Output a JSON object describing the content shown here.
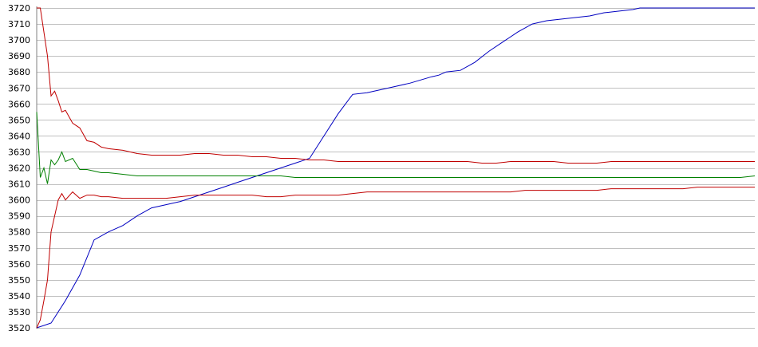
{
  "chart_data": {
    "type": "line",
    "title": "",
    "xlabel": "",
    "ylabel": "",
    "ylim": [
      3520,
      3720
    ],
    "yticks": [
      3520,
      3530,
      3540,
      3550,
      3560,
      3570,
      3580,
      3590,
      3600,
      3610,
      3620,
      3630,
      3640,
      3650,
      3660,
      3670,
      3680,
      3690,
      3700,
      3710,
      3720
    ],
    "xlim": [
      0,
      100
    ],
    "grid": true,
    "legend": "none",
    "series": [
      {
        "color": "#0000c0",
        "x": [
          0,
          2,
          4,
          6,
          8,
          10,
          12,
          14,
          16,
          18,
          20,
          22,
          24,
          26,
          28,
          30,
          32,
          34,
          36,
          38,
          40,
          42,
          44,
          46,
          48,
          50,
          52,
          53.5,
          55,
          56,
          57,
          59,
          61,
          63,
          65,
          67,
          69,
          71,
          73,
          75,
          77,
          79,
          81,
          83,
          84,
          86,
          88,
          90,
          92,
          94,
          96,
          98,
          100
        ],
        "y": [
          3520,
          3523,
          3537,
          3553,
          3575,
          3580,
          3584,
          3590,
          3595,
          3597,
          3599,
          3602,
          3605,
          3608,
          3611,
          3614,
          3617,
          3620,
          3623,
          3626,
          3640,
          3654,
          3666,
          3667,
          3669,
          3671,
          3673,
          3675,
          3677,
          3678,
          3680,
          3681,
          3686,
          3693,
          3699,
          3705,
          3710,
          3712,
          3713,
          3714,
          3715,
          3717,
          3718,
          3719,
          3720,
          3720,
          3720,
          3720,
          3720,
          3720,
          3720,
          3720,
          3720
        ]
      },
      {
        "color": "#c00000",
        "x": [
          0,
          0.5,
          1,
          1.5,
          2,
          2.5,
          3,
          3.5,
          4,
          5,
          6,
          7,
          8,
          9,
          10,
          12,
          14,
          16,
          18,
          20,
          22,
          24,
          26,
          28,
          30,
          32,
          34,
          36,
          38,
          40,
          42,
          44,
          46,
          48,
          50,
          52,
          54,
          56,
          58,
          60,
          62,
          64,
          66,
          68,
          70,
          72,
          74,
          76,
          78,
          80,
          82,
          84,
          86,
          88,
          90,
          92,
          94,
          96,
          98,
          100
        ],
        "y": [
          3720,
          3720,
          3705,
          3690,
          3665,
          3668,
          3662,
          3655,
          3656,
          3648,
          3645,
          3637,
          3636,
          3633,
          3632,
          3631,
          3629,
          3628,
          3628,
          3628,
          3629,
          3629,
          3628,
          3628,
          3627,
          3627,
          3626,
          3626,
          3625,
          3625,
          3624,
          3624,
          3624,
          3624,
          3624,
          3624,
          3624,
          3624,
          3624,
          3624,
          3623,
          3623,
          3624,
          3624,
          3624,
          3624,
          3623,
          3623,
          3623,
          3624,
          3624,
          3624,
          3624,
          3624,
          3624,
          3624,
          3624,
          3624,
          3624,
          3624
        ]
      },
      {
        "color": "#008000",
        "x": [
          0,
          0.5,
          1,
          1.5,
          2,
          2.5,
          3,
          3.5,
          4,
          5,
          6,
          7,
          8,
          9,
          10,
          12,
          14,
          16,
          18,
          20,
          22,
          24,
          26,
          28,
          30,
          32,
          34,
          36,
          38,
          40,
          42,
          44,
          46,
          48,
          50,
          52,
          54,
          56,
          58,
          60,
          62,
          64,
          66,
          68,
          70,
          72,
          74,
          76,
          78,
          80,
          82,
          84,
          86,
          88,
          90,
          92,
          94,
          96,
          98,
          100
        ],
        "y": [
          3655,
          3614,
          3620,
          3610,
          3625,
          3622,
          3625,
          3630,
          3624,
          3626,
          3619,
          3619,
          3618,
          3617,
          3617,
          3616,
          3615,
          3615,
          3615,
          3615,
          3615,
          3615,
          3615,
          3615,
          3615,
          3615,
          3615,
          3614,
          3614,
          3614,
          3614,
          3614,
          3614,
          3614,
          3614,
          3614,
          3614,
          3614,
          3614,
          3614,
          3614,
          3614,
          3614,
          3614,
          3614,
          3614,
          3614,
          3614,
          3614,
          3614,
          3614,
          3614,
          3614,
          3614,
          3614,
          3614,
          3614,
          3614,
          3614,
          3615
        ]
      },
      {
        "color": "#c00000",
        "x": [
          0,
          0.5,
          1,
          1.5,
          2,
          2.5,
          3,
          3.5,
          4,
          5,
          6,
          7,
          8,
          9,
          10,
          12,
          14,
          16,
          18,
          20,
          22,
          24,
          26,
          28,
          30,
          32,
          34,
          36,
          38,
          40,
          42,
          44,
          46,
          48,
          50,
          52,
          54,
          56,
          58,
          60,
          62,
          64,
          66,
          68,
          70,
          72,
          74,
          76,
          78,
          80,
          82,
          84,
          86,
          88,
          90,
          92,
          94,
          96,
          98,
          100
        ],
        "y": [
          3520,
          3525,
          3537,
          3550,
          3580,
          3590,
          3600,
          3604,
          3600,
          3605,
          3601,
          3603,
          3603,
          3602,
          3602,
          3601,
          3601,
          3601,
          3601,
          3602,
          3603,
          3603,
          3603,
          3603,
          3603,
          3602,
          3602,
          3603,
          3603,
          3603,
          3603,
          3604,
          3605,
          3605,
          3605,
          3605,
          3605,
          3605,
          3605,
          3605,
          3605,
          3605,
          3605,
          3606,
          3606,
          3606,
          3606,
          3606,
          3606,
          3607,
          3607,
          3607,
          3607,
          3607,
          3607,
          3608,
          3608,
          3608,
          3608,
          3608
        ]
      }
    ]
  }
}
